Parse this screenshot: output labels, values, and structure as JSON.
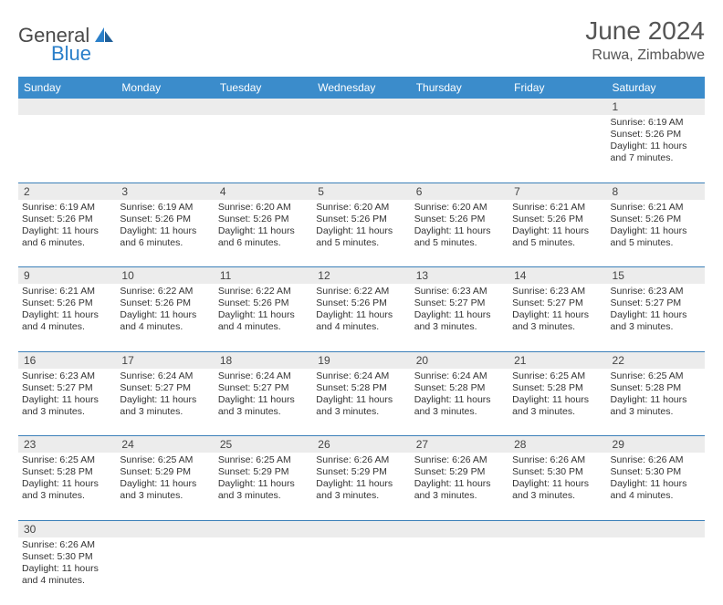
{
  "logo": {
    "text1": "General",
    "text2": "Blue"
  },
  "title": "June 2024",
  "location": "Ruwa, Zimbabwe",
  "header_bg": "#3b8ccb",
  "header_fg": "#ffffff",
  "daynum_bg": "#ececec",
  "divider_color": "#3b7fb8",
  "text_color": "#333333",
  "logo_gray": "#4a4a4a",
  "logo_blue": "#2a7fc9",
  "day_names": [
    "Sunday",
    "Monday",
    "Tuesday",
    "Wednesday",
    "Thursday",
    "Friday",
    "Saturday"
  ],
  "weeks": [
    [
      null,
      null,
      null,
      null,
      null,
      null,
      {
        "n": "1",
        "sr": "Sunrise: 6:19 AM",
        "ss": "Sunset: 5:26 PM",
        "dl": "Daylight: 11 hours and 7 minutes."
      }
    ],
    [
      {
        "n": "2",
        "sr": "Sunrise: 6:19 AM",
        "ss": "Sunset: 5:26 PM",
        "dl": "Daylight: 11 hours and 6 minutes."
      },
      {
        "n": "3",
        "sr": "Sunrise: 6:19 AM",
        "ss": "Sunset: 5:26 PM",
        "dl": "Daylight: 11 hours and 6 minutes."
      },
      {
        "n": "4",
        "sr": "Sunrise: 6:20 AM",
        "ss": "Sunset: 5:26 PM",
        "dl": "Daylight: 11 hours and 6 minutes."
      },
      {
        "n": "5",
        "sr": "Sunrise: 6:20 AM",
        "ss": "Sunset: 5:26 PM",
        "dl": "Daylight: 11 hours and 5 minutes."
      },
      {
        "n": "6",
        "sr": "Sunrise: 6:20 AM",
        "ss": "Sunset: 5:26 PM",
        "dl": "Daylight: 11 hours and 5 minutes."
      },
      {
        "n": "7",
        "sr": "Sunrise: 6:21 AM",
        "ss": "Sunset: 5:26 PM",
        "dl": "Daylight: 11 hours and 5 minutes."
      },
      {
        "n": "8",
        "sr": "Sunrise: 6:21 AM",
        "ss": "Sunset: 5:26 PM",
        "dl": "Daylight: 11 hours and 5 minutes."
      }
    ],
    [
      {
        "n": "9",
        "sr": "Sunrise: 6:21 AM",
        "ss": "Sunset: 5:26 PM",
        "dl": "Daylight: 11 hours and 4 minutes."
      },
      {
        "n": "10",
        "sr": "Sunrise: 6:22 AM",
        "ss": "Sunset: 5:26 PM",
        "dl": "Daylight: 11 hours and 4 minutes."
      },
      {
        "n": "11",
        "sr": "Sunrise: 6:22 AM",
        "ss": "Sunset: 5:26 PM",
        "dl": "Daylight: 11 hours and 4 minutes."
      },
      {
        "n": "12",
        "sr": "Sunrise: 6:22 AM",
        "ss": "Sunset: 5:26 PM",
        "dl": "Daylight: 11 hours and 4 minutes."
      },
      {
        "n": "13",
        "sr": "Sunrise: 6:23 AM",
        "ss": "Sunset: 5:27 PM",
        "dl": "Daylight: 11 hours and 3 minutes."
      },
      {
        "n": "14",
        "sr": "Sunrise: 6:23 AM",
        "ss": "Sunset: 5:27 PM",
        "dl": "Daylight: 11 hours and 3 minutes."
      },
      {
        "n": "15",
        "sr": "Sunrise: 6:23 AM",
        "ss": "Sunset: 5:27 PM",
        "dl": "Daylight: 11 hours and 3 minutes."
      }
    ],
    [
      {
        "n": "16",
        "sr": "Sunrise: 6:23 AM",
        "ss": "Sunset: 5:27 PM",
        "dl": "Daylight: 11 hours and 3 minutes."
      },
      {
        "n": "17",
        "sr": "Sunrise: 6:24 AM",
        "ss": "Sunset: 5:27 PM",
        "dl": "Daylight: 11 hours and 3 minutes."
      },
      {
        "n": "18",
        "sr": "Sunrise: 6:24 AM",
        "ss": "Sunset: 5:27 PM",
        "dl": "Daylight: 11 hours and 3 minutes."
      },
      {
        "n": "19",
        "sr": "Sunrise: 6:24 AM",
        "ss": "Sunset: 5:28 PM",
        "dl": "Daylight: 11 hours and 3 minutes."
      },
      {
        "n": "20",
        "sr": "Sunrise: 6:24 AM",
        "ss": "Sunset: 5:28 PM",
        "dl": "Daylight: 11 hours and 3 minutes."
      },
      {
        "n": "21",
        "sr": "Sunrise: 6:25 AM",
        "ss": "Sunset: 5:28 PM",
        "dl": "Daylight: 11 hours and 3 minutes."
      },
      {
        "n": "22",
        "sr": "Sunrise: 6:25 AM",
        "ss": "Sunset: 5:28 PM",
        "dl": "Daylight: 11 hours and 3 minutes."
      }
    ],
    [
      {
        "n": "23",
        "sr": "Sunrise: 6:25 AM",
        "ss": "Sunset: 5:28 PM",
        "dl": "Daylight: 11 hours and 3 minutes."
      },
      {
        "n": "24",
        "sr": "Sunrise: 6:25 AM",
        "ss": "Sunset: 5:29 PM",
        "dl": "Daylight: 11 hours and 3 minutes."
      },
      {
        "n": "25",
        "sr": "Sunrise: 6:25 AM",
        "ss": "Sunset: 5:29 PM",
        "dl": "Daylight: 11 hours and 3 minutes."
      },
      {
        "n": "26",
        "sr": "Sunrise: 6:26 AM",
        "ss": "Sunset: 5:29 PM",
        "dl": "Daylight: 11 hours and 3 minutes."
      },
      {
        "n": "27",
        "sr": "Sunrise: 6:26 AM",
        "ss": "Sunset: 5:29 PM",
        "dl": "Daylight: 11 hours and 3 minutes."
      },
      {
        "n": "28",
        "sr": "Sunrise: 6:26 AM",
        "ss": "Sunset: 5:30 PM",
        "dl": "Daylight: 11 hours and 3 minutes."
      },
      {
        "n": "29",
        "sr": "Sunrise: 6:26 AM",
        "ss": "Sunset: 5:30 PM",
        "dl": "Daylight: 11 hours and 4 minutes."
      }
    ],
    [
      {
        "n": "30",
        "sr": "Sunrise: 6:26 AM",
        "ss": "Sunset: 5:30 PM",
        "dl": "Daylight: 11 hours and 4 minutes."
      },
      null,
      null,
      null,
      null,
      null,
      null
    ]
  ]
}
